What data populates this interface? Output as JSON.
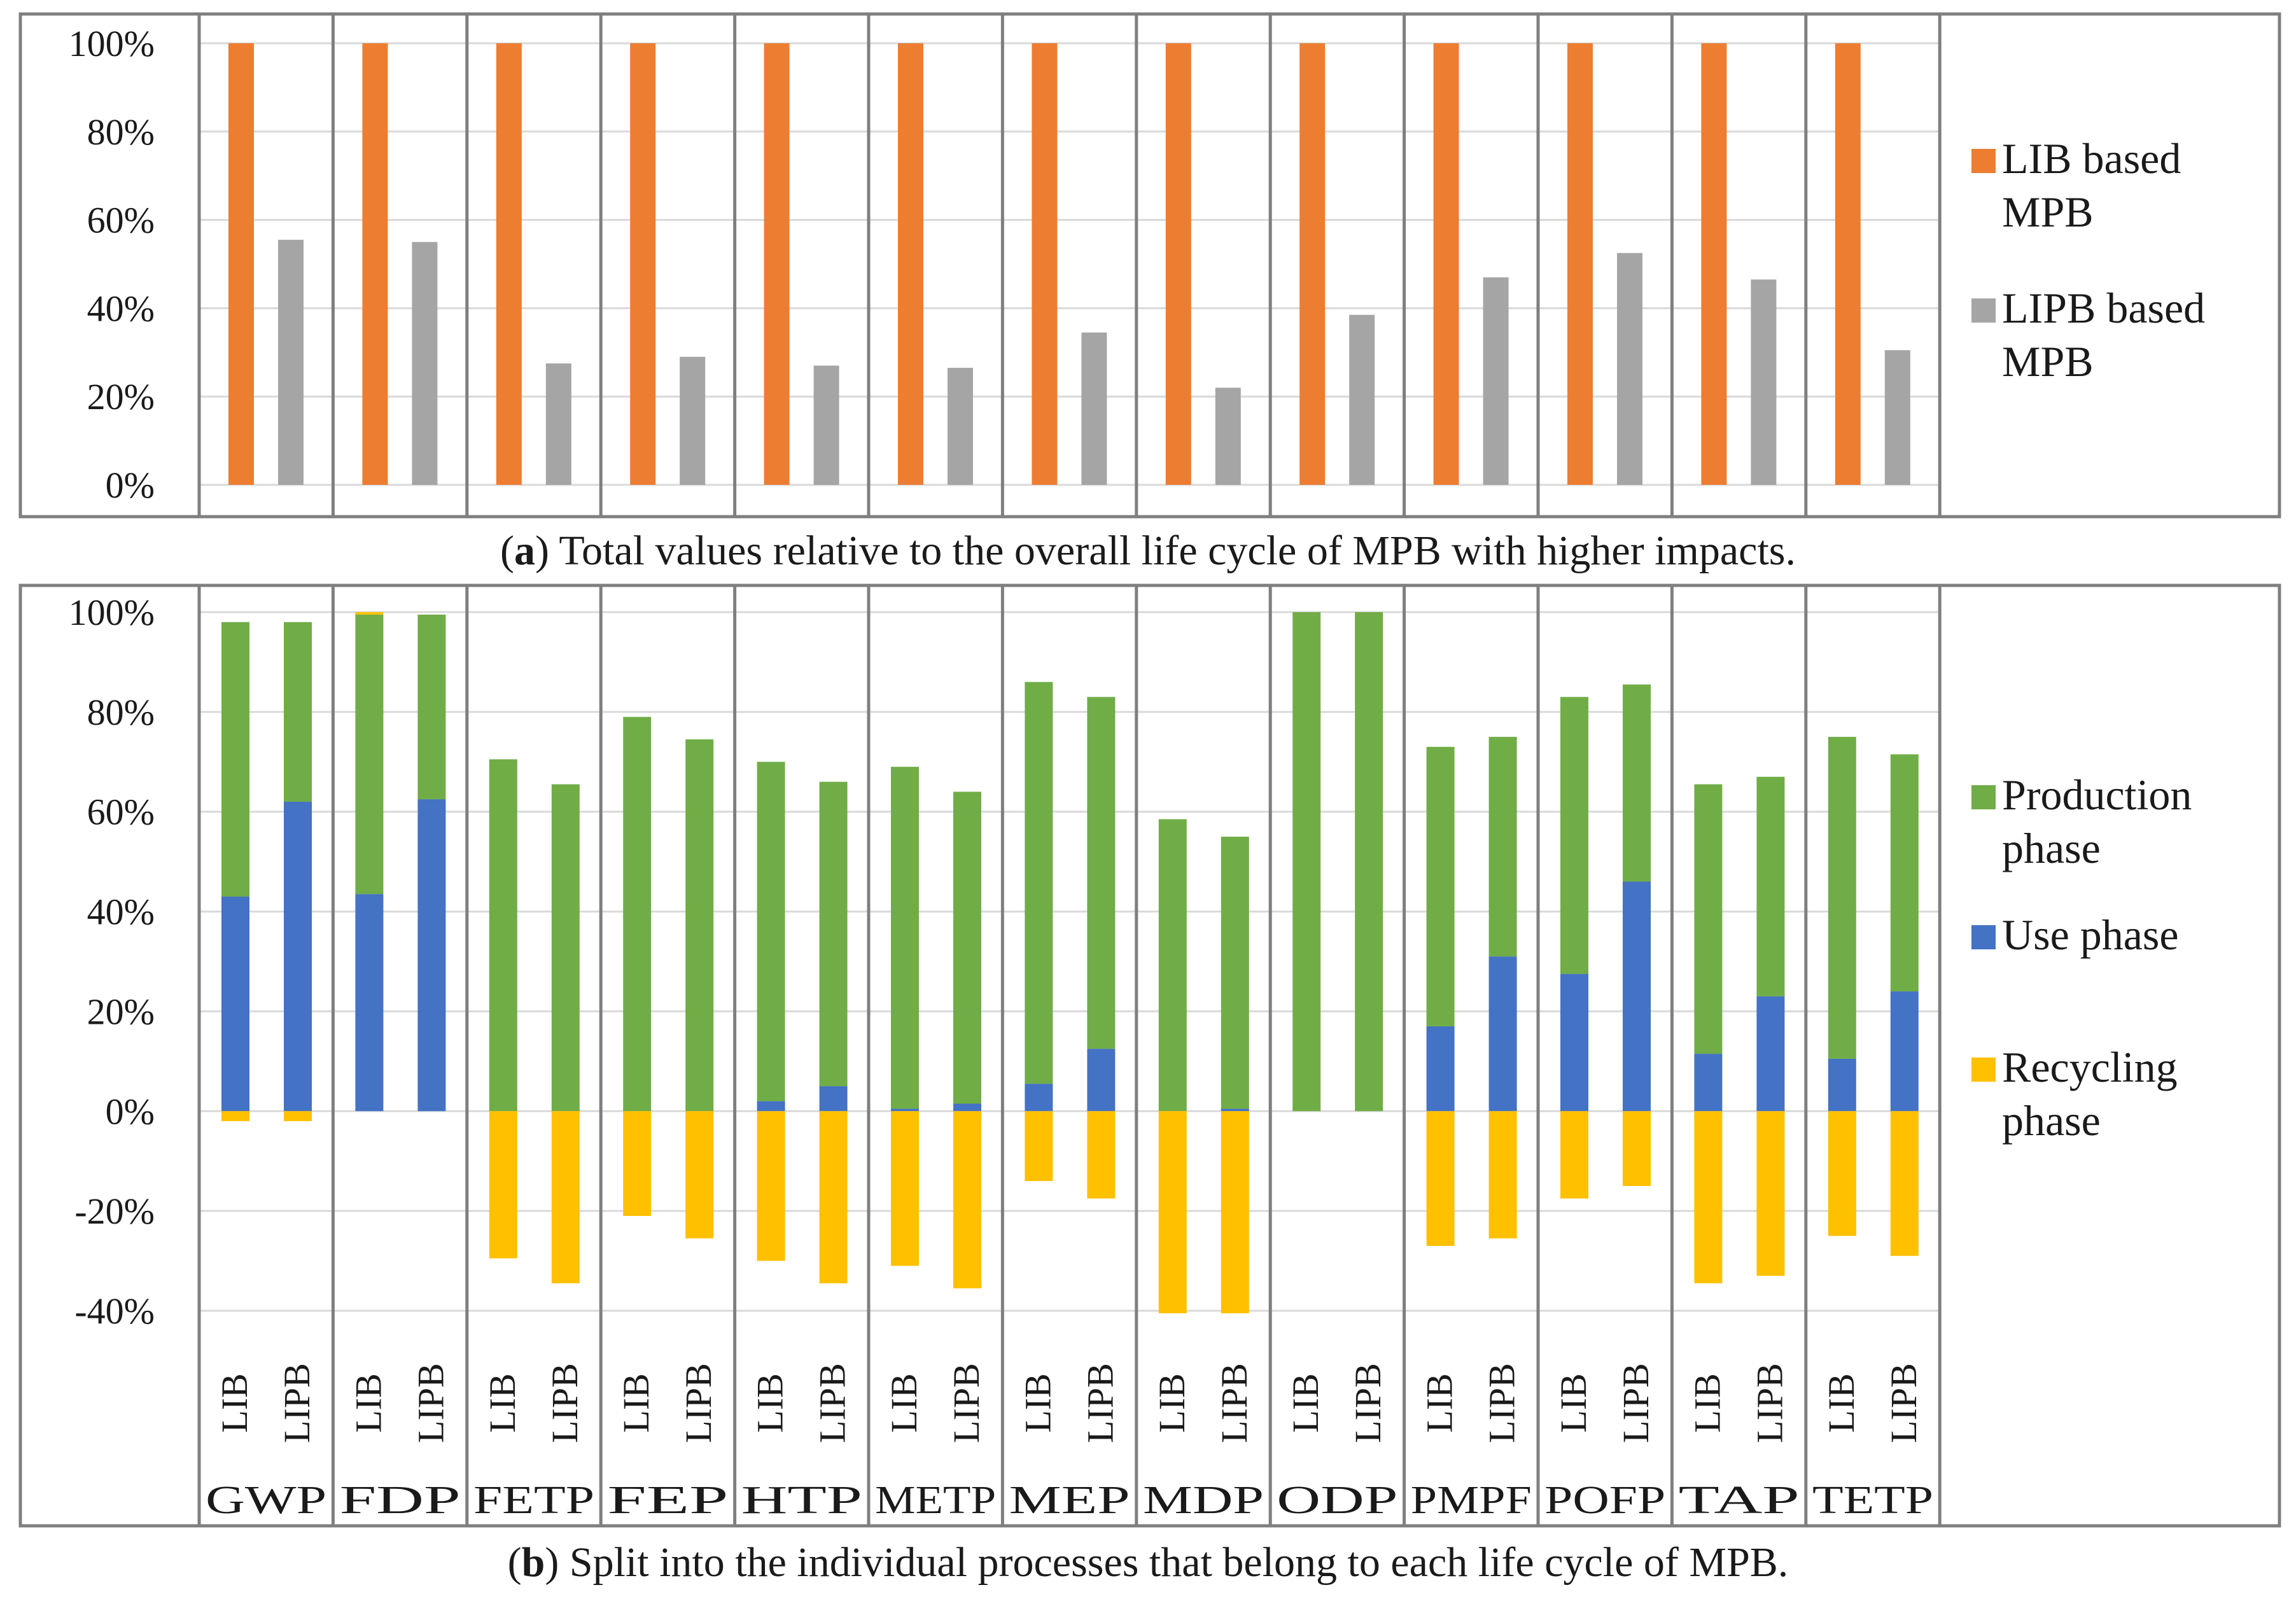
{
  "chart_data": [
    {
      "type": "bar",
      "panel": "a",
      "caption": {
        "letter": "a",
        "text": "Total values relative to the overall life cycle of MPB with higher impacts."
      },
      "categories": [
        "GWP",
        "FDP",
        "FETP",
        "FEP",
        "HTP",
        "METP",
        "MEP",
        "MDP",
        "ODP",
        "PMPF",
        "POFP",
        "TAP",
        "TETP"
      ],
      "series": [
        {
          "name": "LIB based MPB",
          "legend_lines": [
            "LIB based",
            "MPB"
          ],
          "color": "#ED7D31",
          "values": [
            100,
            100,
            100,
            100,
            100,
            100,
            100,
            100,
            100,
            100,
            100,
            100,
            100
          ]
        },
        {
          "name": "LIPB based MPB",
          "legend_lines": [
            "LIPB based",
            "MPB"
          ],
          "color": "#A5A5A5",
          "values": [
            55.5,
            55,
            27.5,
            29,
            27,
            26.5,
            34.5,
            22,
            38.5,
            47,
            52.5,
            46.5,
            30.5
          ]
        }
      ],
      "ylim": [
        0,
        100
      ],
      "yticks": [
        0,
        20,
        40,
        60,
        80,
        100
      ],
      "ytick_labels": [
        "0%",
        "20%",
        "40%",
        "60%",
        "80%",
        "100%"
      ],
      "grid": true,
      "legend_position": "right"
    },
    {
      "type": "bar",
      "stacked": true,
      "panel": "b",
      "caption": {
        "letter": "b",
        "text": "Split into the individual processes that belong to each life cycle of MPB."
      },
      "categories": [
        "GWP",
        "FDP",
        "FETP",
        "FEP",
        "HTP",
        "METP",
        "MEP",
        "MDP",
        "ODP",
        "PMPF",
        "POFP",
        "TAP",
        "TETP"
      ],
      "sub_categories": [
        "LIB",
        "LIPB"
      ],
      "series": [
        {
          "name": "Production phase",
          "legend_lines": [
            "Production",
            "phase"
          ],
          "color": "#70AD47",
          "values": [
            [
              55,
              36
            ],
            [
              56,
              37
            ],
            [
              70.5,
              65.5
            ],
            [
              79,
              74.5
            ],
            [
              68,
              61
            ],
            [
              68.5,
              62.5
            ],
            [
              80.5,
              70.5
            ],
            [
              58.5,
              54.5
            ],
            [
              100,
              100
            ],
            [
              56,
              44
            ],
            [
              55.5,
              39.5
            ],
            [
              54,
              44
            ],
            [
              64.5,
              47.5
            ]
          ]
        },
        {
          "name": "Use phase",
          "legend_lines": [
            "Use phase"
          ],
          "color": "#4472C4",
          "values": [
            [
              43,
              62
            ],
            [
              43.5,
              62.5
            ],
            [
              0,
              0
            ],
            [
              0,
              0
            ],
            [
              2,
              5
            ],
            [
              0.5,
              1.5
            ],
            [
              5.5,
              12.5
            ],
            [
              0,
              0.5
            ],
            [
              0,
              0
            ],
            [
              17,
              31
            ],
            [
              27.5,
              46
            ],
            [
              11.5,
              23
            ],
            [
              10.5,
              24
            ]
          ]
        },
        {
          "name": "Recycling phase",
          "legend_lines": [
            "Recycling",
            "phase"
          ],
          "color": "#FFC000",
          "values": [
            [
              -2,
              -2
            ],
            [
              0.5,
              0
            ],
            [
              -29.5,
              -34.5
            ],
            [
              -21,
              -25.5
            ],
            [
              -30,
              -34.5
            ],
            [
              -31,
              -35.5
            ],
            [
              -14,
              -17.5
            ],
            [
              -40.5,
              -40.5
            ],
            [
              0,
              0
            ],
            [
              -27,
              -25.5
            ],
            [
              -17.5,
              -15
            ],
            [
              -34.5,
              -33
            ],
            [
              -25,
              -29
            ]
          ]
        }
      ],
      "ylim": [
        -40,
        100
      ],
      "yticks": [
        -40,
        -20,
        0,
        20,
        40,
        60,
        80,
        100
      ],
      "ytick_labels": [
        "-40%",
        "-20%",
        "0%",
        "20%",
        "40%",
        "60%",
        "80%",
        "100%"
      ],
      "grid": true,
      "legend_position": "right"
    }
  ]
}
